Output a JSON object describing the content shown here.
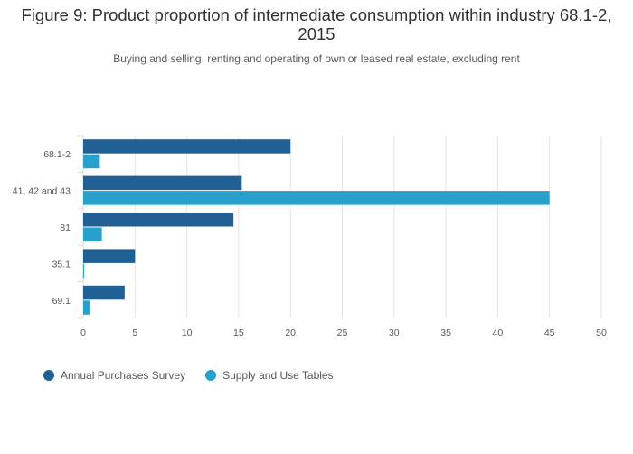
{
  "header": {
    "title": "Figure 9: Product proportion of intermediate consumption within industry 68.1-2, 2015",
    "subtitle": "Buying and selling, renting and operating of own or leased real estate, excluding rent"
  },
  "chart_data": {
    "type": "bar",
    "orientation": "horizontal",
    "title": "Figure 9: Product proportion of intermediate consumption within industry 68.1-2, 2015",
    "subtitle": "Buying and selling, renting and operating of own or leased real estate, excluding rent",
    "xlabel": "",
    "ylabel": "",
    "categories": [
      "68.1-2",
      "41, 42 and 43",
      "81",
      "35.1",
      "69.1"
    ],
    "series": [
      {
        "name": "Annual Purchases Survey",
        "color": "#206095",
        "values": [
          20,
          15.3,
          14.5,
          5,
          4
        ]
      },
      {
        "name": "Supply and Use Tables",
        "color": "#27a0cc",
        "values": [
          1.6,
          45,
          1.8,
          0.1,
          0.6
        ]
      }
    ],
    "xlim": [
      0,
      50
    ],
    "xticks": [
      "0",
      "5",
      "10",
      "15",
      "20",
      "25",
      "30",
      "35",
      "40",
      "45",
      "50"
    ],
    "grid": true,
    "legend_position": "bottom-left"
  }
}
